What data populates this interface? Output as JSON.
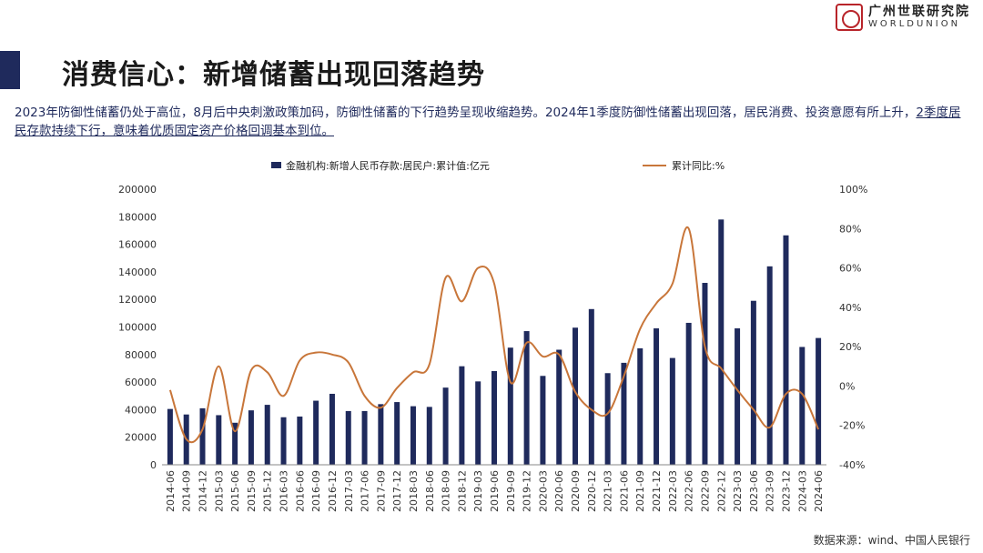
{
  "header": {
    "title": "消费信心：新增储蓄出现回落趋势",
    "subtitle_part1": "2023年防御性储蓄仍处于高位，8月后中央刺激政策加码，防御性储蓄的下行趋势呈现收缩趋势。2024年1季度防御性储蓄出现回落，居民消费、投资意愿有所上升，",
    "subtitle_part2": "2季度居民存款持续下行，意味着优质固定资产价格回调基本到位。",
    "logo_cn": "广州世联研究院",
    "logo_en": "WORLDUNION"
  },
  "footer": {
    "source": "数据来源：wind、中国人民银行"
  },
  "colors": {
    "bar": "#1f2a5c",
    "line": "#c8763a",
    "accent": "#1f2a5c",
    "logo_red": "#b8242a"
  },
  "chart_data": {
    "type": "bar",
    "categories": [
      "2014-06",
      "2014-09",
      "2014-12",
      "2015-03",
      "2015-06",
      "2015-09",
      "2015-12",
      "2016-03",
      "2016-06",
      "2016-09",
      "2016-12",
      "2017-03",
      "2017-06",
      "2017-09",
      "2017-12",
      "2018-03",
      "2018-06",
      "2018-09",
      "2018-12",
      "2019-03",
      "2019-06",
      "2019-09",
      "2019-12",
      "2020-03",
      "2020-06",
      "2020-09",
      "2020-12",
      "2021-03",
      "2021-06",
      "2021-09",
      "2021-12",
      "2022-03",
      "2022-06",
      "2022-09",
      "2022-12",
      "2023-03",
      "2023-06",
      "2023-09",
      "2023-12",
      "2024-03",
      "2024-06"
    ],
    "series": [
      {
        "name": "金融机构:新增人民币存款:居民户:累计值:亿元",
        "axis": "left",
        "kind": "bar",
        "values": [
          40500,
          36500,
          41000,
          36000,
          30500,
          39500,
          43500,
          34500,
          35000,
          46500,
          51500,
          39000,
          39000,
          44000,
          45500,
          42500,
          42000,
          56000,
          71500,
          60500,
          68000,
          85000,
          97000,
          64500,
          83500,
          99500,
          113000,
          66500,
          74000,
          84500,
          99000,
          77500,
          103000,
          132000,
          178000,
          99000,
          119000,
          144000,
          166500,
          85500,
          92000
        ]
      },
      {
        "name": "累计同比:%",
        "axis": "right",
        "kind": "line",
        "values": [
          -2,
          -27,
          -22,
          10,
          -23,
          8,
          7,
          -5,
          13,
          17,
          16,
          12,
          -5,
          -11,
          -1,
          7,
          11,
          55,
          43,
          60,
          52,
          2,
          22,
          15,
          16,
          -3,
          -12,
          -14,
          5,
          29,
          42,
          52,
          80,
          20,
          9,
          -2,
          -12,
          -21,
          -4,
          -4,
          -22
        ]
      }
    ],
    "y_left": {
      "min": 0,
      "max": 200000,
      "step": 20000
    },
    "y_right": {
      "min": -40,
      "max": 100,
      "step": 20,
      "suffix": "%"
    },
    "legend_position": "top",
    "grid": false
  }
}
